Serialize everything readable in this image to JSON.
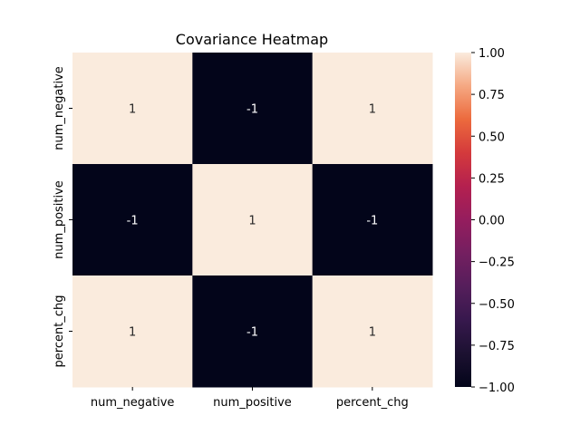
{
  "chart_data": {
    "type": "heatmap",
    "title": "Covariance Heatmap",
    "xlabel": "",
    "ylabel": "",
    "x_categories": [
      "num_negative",
      "num_positive",
      "percent_chg"
    ],
    "y_categories": [
      "num_negative",
      "num_positive",
      "percent_chg"
    ],
    "values": [
      [
        1,
        -1,
        1
      ],
      [
        -1,
        1,
        -1
      ],
      [
        1,
        -1,
        1
      ]
    ],
    "annotations": [
      [
        "1",
        "-1",
        "1"
      ],
      [
        "-1",
        "1",
        "-1"
      ],
      [
        "1",
        "-1",
        "1"
      ]
    ],
    "colorbar": {
      "range": [
        -1.0,
        1.0
      ],
      "ticks": [
        "-1.00",
        "-0.75",
        "-0.50",
        "-0.25",
        "0.00",
        "0.25",
        "0.50",
        "0.75",
        "1.00"
      ],
      "tick_values": [
        -1.0,
        -0.75,
        -0.5,
        -0.25,
        0.0,
        0.25,
        0.5,
        0.75,
        1.0
      ],
      "colormap": "rocket",
      "low_color": "#03051a",
      "high_color": "#faebdd"
    },
    "grid": false,
    "legend": "colorbar-right"
  }
}
